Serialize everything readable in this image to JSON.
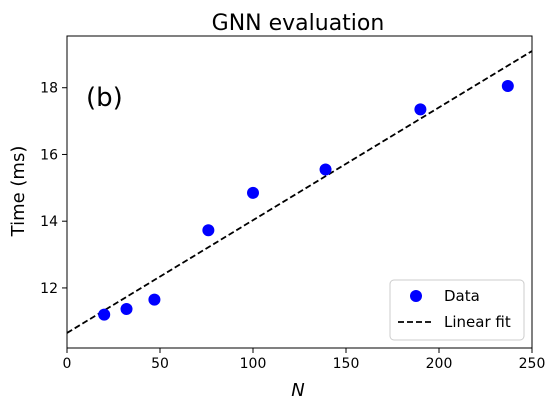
{
  "chart_data": {
    "type": "scatter",
    "title": "GNN evaluation",
    "panel_label": "(b)",
    "xlabel": "N",
    "ylabel": "Time (ms)",
    "xlim": [
      0,
      250
    ],
    "ylim": [
      10.2,
      19.55
    ],
    "xticks": [
      0,
      50,
      100,
      150,
      200,
      250
    ],
    "yticks": [
      12,
      14,
      16,
      18
    ],
    "grid": false,
    "legend_position": "lower-right",
    "series": [
      {
        "name": "Data",
        "kind": "points",
        "color": "#0000ff",
        "x": [
          20,
          32,
          47,
          76,
          100,
          139,
          190,
          237
        ],
        "y": [
          11.2,
          11.37,
          11.65,
          13.73,
          14.85,
          15.55,
          17.35,
          18.05
        ]
      },
      {
        "name": "Linear fit",
        "kind": "line",
        "color": "#000000",
        "dash": "dashed",
        "x": [
          0,
          250
        ],
        "y": [
          10.65,
          19.1
        ]
      }
    ]
  }
}
